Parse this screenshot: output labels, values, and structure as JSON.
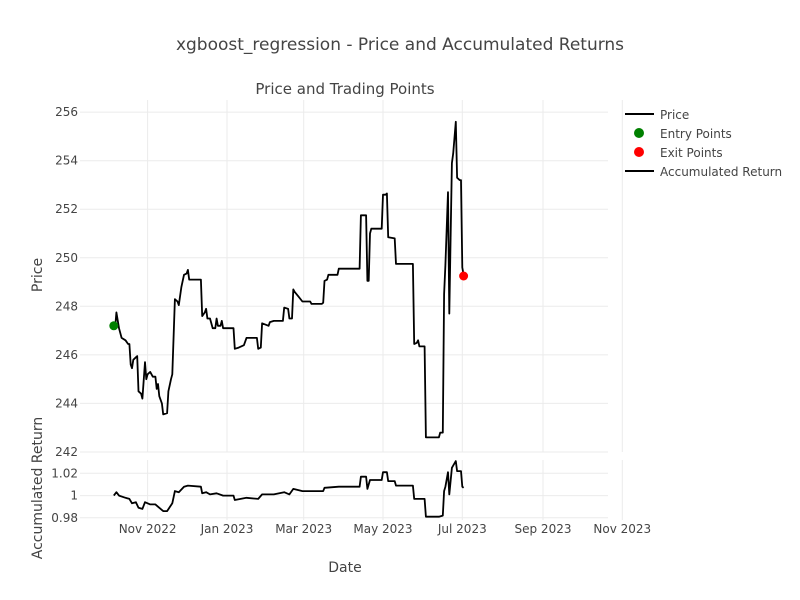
{
  "figure": {
    "title": "xgboost_regression - Price and Accumulated Returns"
  },
  "legend": {
    "placement": "top-right",
    "items": [
      {
        "label": "Price",
        "kind": "line",
        "color": "#000000"
      },
      {
        "label": "Entry Points",
        "kind": "marker",
        "color": "#008000"
      },
      {
        "label": "Exit Points",
        "kind": "marker",
        "color": "#ff0000"
      },
      {
        "label": "Accumulated Return",
        "kind": "line",
        "color": "#000000"
      }
    ]
  },
  "chart_data": [
    {
      "type": "line",
      "title": "Price and Trading Points",
      "xlabel": "",
      "ylabel": "Price",
      "xlim": [
        "2022-09-10",
        "2023-10-21"
      ],
      "ylim": [
        242,
        256.5
      ],
      "grid": true,
      "yticks": [
        242,
        244,
        246,
        248,
        250,
        252,
        254,
        256
      ],
      "series": [
        {
          "name": "Price",
          "color": "#000000",
          "points": [
            [
              "2022-10-06",
              247.2
            ],
            [
              "2022-10-07",
              247.1
            ],
            [
              "2022-10-08",
              247.75
            ],
            [
              "2022-10-10",
              247.1
            ],
            [
              "2022-10-12",
              246.7
            ],
            [
              "2022-10-15",
              246.6
            ],
            [
              "2022-10-17",
              246.45
            ],
            [
              "2022-10-18",
              246.45
            ],
            [
              "2022-10-19",
              245.6
            ],
            [
              "2022-10-20",
              245.45
            ],
            [
              "2022-10-21",
              245.8
            ],
            [
              "2022-10-23",
              245.9
            ],
            [
              "2022-10-24",
              245.95
            ],
            [
              "2022-10-25",
              244.5
            ],
            [
              "2022-10-27",
              244.4
            ],
            [
              "2022-10-28",
              244.2
            ],
            [
              "2022-10-30",
              245.7
            ],
            [
              "2022-10-31",
              245.0
            ],
            [
              "2022-11-01",
              245.2
            ],
            [
              "2022-11-03",
              245.3
            ],
            [
              "2022-11-05",
              245.1
            ],
            [
              "2022-11-07",
              245.1
            ],
            [
              "2022-11-08",
              244.6
            ],
            [
              "2022-11-09",
              244.8
            ],
            [
              "2022-11-10",
              244.3
            ],
            [
              "2022-11-12",
              244.0
            ],
            [
              "2022-11-13",
              243.55
            ],
            [
              "2022-11-16",
              243.6
            ],
            [
              "2022-11-17",
              244.5
            ],
            [
              "2022-11-19",
              245.0
            ],
            [
              "2022-11-20",
              245.2
            ],
            [
              "2022-11-22",
              248.3
            ],
            [
              "2022-11-24",
              248.2
            ],
            [
              "2022-11-25",
              248.05
            ],
            [
              "2022-11-27",
              248.8
            ],
            [
              "2022-11-29",
              249.3
            ],
            [
              "2022-12-01",
              249.35
            ],
            [
              "2022-12-02",
              249.5
            ],
            [
              "2022-12-03",
              249.1
            ],
            [
              "2022-12-12",
              249.1
            ],
            [
              "2022-12-13",
              247.6
            ],
            [
              "2022-12-15",
              247.75
            ],
            [
              "2022-12-16",
              247.9
            ],
            [
              "2022-12-17",
              247.5
            ],
            [
              "2022-12-19",
              247.5
            ],
            [
              "2022-12-21",
              247.1
            ],
            [
              "2022-12-23",
              247.1
            ],
            [
              "2022-12-24",
              247.5
            ],
            [
              "2022-12-25",
              247.2
            ],
            [
              "2022-12-27",
              247.2
            ],
            [
              "2022-12-28",
              247.4
            ],
            [
              "2022-12-29",
              247.1
            ],
            [
              "2023-01-06",
              247.1
            ],
            [
              "2023-01-07",
              246.25
            ],
            [
              "2023-01-10",
              246.3
            ],
            [
              "2023-01-14",
              246.4
            ],
            [
              "2023-01-16",
              246.7
            ],
            [
              "2023-01-24",
              246.7
            ],
            [
              "2023-01-25",
              246.25
            ],
            [
              "2023-01-27",
              246.3
            ],
            [
              "2023-01-28",
              247.3
            ],
            [
              "2023-02-02",
              247.2
            ],
            [
              "2023-02-03",
              247.35
            ],
            [
              "2023-02-06",
              247.4
            ],
            [
              "2023-02-13",
              247.4
            ],
            [
              "2023-02-14",
              247.95
            ],
            [
              "2023-02-17",
              247.9
            ],
            [
              "2023-02-18",
              247.5
            ],
            [
              "2023-02-20",
              247.5
            ],
            [
              "2023-02-21",
              248.7
            ],
            [
              "2023-02-22",
              248.6
            ],
            [
              "2023-02-25",
              248.4
            ],
            [
              "2023-02-28",
              248.2
            ],
            [
              "2023-03-06",
              248.2
            ],
            [
              "2023-03-07",
              248.1
            ],
            [
              "2023-03-15",
              248.1
            ],
            [
              "2023-03-16",
              248.15
            ],
            [
              "2023-03-17",
              249.05
            ],
            [
              "2023-03-19",
              249.1
            ],
            [
              "2023-03-20",
              249.3
            ],
            [
              "2023-03-27",
              249.3
            ],
            [
              "2023-03-28",
              249.55
            ],
            [
              "2023-04-13",
              249.55
            ],
            [
              "2023-04-14",
              251.75
            ],
            [
              "2023-04-18",
              251.75
            ],
            [
              "2023-04-19",
              249.05
            ],
            [
              "2023-04-20",
              249.05
            ],
            [
              "2023-04-21",
              251.0
            ],
            [
              "2023-04-22",
              251.2
            ],
            [
              "2023-04-30",
              251.2
            ],
            [
              "2023-05-01",
              252.6
            ],
            [
              "2023-05-03",
              252.6
            ],
            [
              "2023-05-04",
              252.65
            ],
            [
              "2023-05-05",
              250.85
            ],
            [
              "2023-05-10",
              250.8
            ],
            [
              "2023-05-11",
              249.75
            ],
            [
              "2023-05-24",
              249.75
            ],
            [
              "2023-05-25",
              246.45
            ],
            [
              "2023-05-27",
              246.5
            ],
            [
              "2023-05-28",
              246.6
            ],
            [
              "2023-05-29",
              246.35
            ],
            [
              "2023-06-02",
              246.35
            ],
            [
              "2023-06-03",
              242.6
            ],
            [
              "2023-06-13",
              242.6
            ],
            [
              "2023-06-14",
              242.8
            ],
            [
              "2023-06-16",
              242.8
            ],
            [
              "2023-06-17",
              248.5
            ],
            [
              "2023-06-18",
              249.7
            ],
            [
              "2023-06-20",
              252.7
            ],
            [
              "2023-06-21",
              247.7
            ],
            [
              "2023-06-23",
              253.9
            ],
            [
              "2023-06-24",
              254.3
            ],
            [
              "2023-06-26",
              255.6
            ],
            [
              "2023-06-27",
              253.3
            ],
            [
              "2023-06-29",
              253.2
            ],
            [
              "2023-06-30",
              253.2
            ],
            [
              "2023-07-01",
              249.6
            ],
            [
              "2023-07-02",
              249.3
            ]
          ]
        },
        {
          "name": "Entry Points",
          "color": "#008000",
          "points": [
            [
              "2022-10-06",
              247.2
            ]
          ]
        },
        {
          "name": "Exit Points",
          "color": "#ff0000",
          "points": [
            [
              "2023-07-02",
              249.25
            ]
          ]
        }
      ]
    },
    {
      "type": "line",
      "title": "",
      "xlabel": "Date",
      "ylabel": "Accumulated Return",
      "xlim": [
        "2022-09-10",
        "2023-10-21"
      ],
      "ylim": [
        0.978,
        1.032
      ],
      "grid": true,
      "yticks": [
        0.98,
        1,
        1.02
      ],
      "ytick_labels": [
        "0.98",
        "1",
        "1.02"
      ],
      "xticks": [
        "2022-11-01",
        "2023-01-01",
        "2023-03-01",
        "2023-05-01",
        "2023-07-01",
        "2023-09-01",
        "2023-11-01"
      ],
      "xtick_labels": [
        "Nov 2022",
        "Jan 2023",
        "Mar 2023",
        "May 2023",
        "Jul 2023",
        "Sep 2023",
        "Nov 2023"
      ],
      "series": [
        {
          "name": "Accumulated Return",
          "color": "#000000",
          "points": [
            [
              "2022-10-06",
              1.0
            ],
            [
              "2022-10-08",
              1.003
            ],
            [
              "2022-10-10",
              1.0
            ],
            [
              "2022-10-15",
              0.998
            ],
            [
              "2022-10-18",
              0.997
            ],
            [
              "2022-10-20",
              0.993
            ],
            [
              "2022-10-23",
              0.994
            ],
            [
              "2022-10-25",
              0.989
            ],
            [
              "2022-10-28",
              0.988
            ],
            [
              "2022-10-30",
              0.994
            ],
            [
              "2022-11-03",
              0.992
            ],
            [
              "2022-11-07",
              0.992
            ],
            [
              "2022-11-09",
              0.99
            ],
            [
              "2022-11-13",
              0.986
            ],
            [
              "2022-11-16",
              0.986
            ],
            [
              "2022-11-20",
              0.993
            ],
            [
              "2022-11-22",
              1.004
            ],
            [
              "2022-11-25",
              1.003
            ],
            [
              "2022-11-29",
              1.008
            ],
            [
              "2022-12-02",
              1.009
            ],
            [
              "2022-12-12",
              1.008
            ],
            [
              "2022-12-13",
              1.002
            ],
            [
              "2022-12-16",
              1.003
            ],
            [
              "2022-12-19",
              1.001
            ],
            [
              "2022-12-24",
              1.002
            ],
            [
              "2022-12-29",
              1.0
            ],
            [
              "2023-01-06",
              1.0
            ],
            [
              "2023-01-07",
              0.996
            ],
            [
              "2023-01-16",
              0.998
            ],
            [
              "2023-01-25",
              0.997
            ],
            [
              "2023-01-28",
              1.001
            ],
            [
              "2023-02-06",
              1.001
            ],
            [
              "2023-02-14",
              1.003
            ],
            [
              "2023-02-18",
              1.001
            ],
            [
              "2023-02-21",
              1.006
            ],
            [
              "2023-02-28",
              1.004
            ],
            [
              "2023-03-16",
              1.004
            ],
            [
              "2023-03-17",
              1.007
            ],
            [
              "2023-03-28",
              1.008
            ],
            [
              "2023-04-13",
              1.008
            ],
            [
              "2023-04-14",
              1.017
            ],
            [
              "2023-04-18",
              1.017
            ],
            [
              "2023-04-19",
              1.006
            ],
            [
              "2023-04-21",
              1.014
            ],
            [
              "2023-04-30",
              1.014
            ],
            [
              "2023-05-01",
              1.021
            ],
            [
              "2023-05-04",
              1.021
            ],
            [
              "2023-05-05",
              1.013
            ],
            [
              "2023-05-10",
              1.013
            ],
            [
              "2023-05-11",
              1.009
            ],
            [
              "2023-05-24",
              1.009
            ],
            [
              "2023-05-25",
              0.997
            ],
            [
              "2023-06-02",
              0.997
            ],
            [
              "2023-06-03",
              0.981
            ],
            [
              "2023-06-13",
              0.981
            ],
            [
              "2023-06-16",
              0.982
            ],
            [
              "2023-06-17",
              1.004
            ],
            [
              "2023-06-18",
              1.008
            ],
            [
              "2023-06-20",
              1.021
            ],
            [
              "2023-06-21",
              1.001
            ],
            [
              "2023-06-23",
              1.025
            ],
            [
              "2023-06-24",
              1.027
            ],
            [
              "2023-06-26",
              1.031
            ],
            [
              "2023-06-27",
              1.022
            ],
            [
              "2023-06-30",
              1.022
            ],
            [
              "2023-07-01",
              1.008
            ],
            [
              "2023-07-02",
              1.007
            ]
          ]
        }
      ]
    }
  ]
}
